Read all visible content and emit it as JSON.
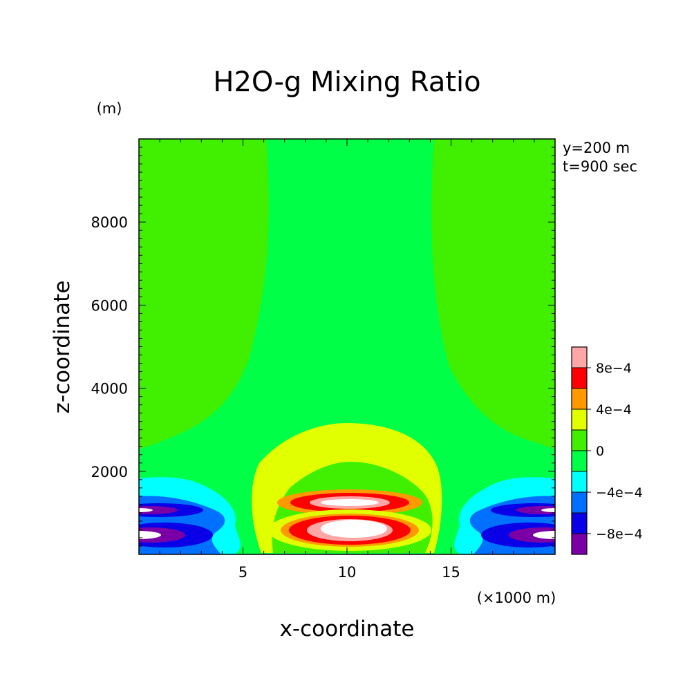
{
  "colors": {
    "frame": "#000000",
    "text": "#000000"
  },
  "chart_data": {
    "type": "heatmap",
    "title": "H2O-g Mixing Ratio",
    "xlabel": "x-coordinate",
    "ylabel": "z-coordinate",
    "x_unit": "(×1000 m)",
    "y_unit": "(m)",
    "annotations": [
      "y=200 m",
      "t=900 sec"
    ],
    "xlim": [
      0,
      20
    ],
    "ylim": [
      0,
      10000
    ],
    "x_ticks": [
      5,
      10,
      15
    ],
    "y_ticks": [
      2000,
      4000,
      6000,
      8000
    ],
    "x_tick_labels": [
      "5",
      "10",
      "15"
    ],
    "y_tick_labels": [
      "2000",
      "4000",
      "6000",
      "8000"
    ],
    "grid": false,
    "legend": {
      "position": "right-bottom",
      "levels": [
        -0.001,
        -0.0008,
        -0.0006,
        -0.0004,
        -0.0002,
        0,
        0.0002,
        0.0004,
        0.0006,
        0.0008,
        0.001
      ],
      "colors": [
        "#7a00a6",
        "#0a00e8",
        "#0070ff",
        "#00ffff",
        "#00ff47",
        "#40f000",
        "#e2ff00",
        "#ff9900",
        "#ff0000",
        "#ffa6a6"
      ],
      "tick_values": [
        -0.0008,
        -0.0004,
        0,
        0.0004,
        0.0008
      ],
      "tick_labels": [
        "−8e−4",
        "−4e−4",
        "0",
        "4e−4",
        "8e−4"
      ]
    },
    "fields": {
      "background": {
        "value": 0,
        "color": "#00ff47"
      },
      "upper_side_band": {
        "value": 0.0001,
        "color": "#40f000"
      },
      "central_cell_bottom": {
        "value": 0.001,
        "color": "#ffffff",
        "center_x": 10.3,
        "center_z": 600
      },
      "central_cell_middle": {
        "value": 0.001,
        "color": "#ffffff",
        "center_x": 10.3,
        "center_z": 1300
      },
      "central_cell_top": {
        "value": 0.0003,
        "color": "#e2ff00",
        "center_x": 10.3,
        "center_z": 2450
      },
      "edge_cells_low": {
        "value": -0.001,
        "color": "#ffffff",
        "center_z": 450
      },
      "edge_cells_high": {
        "value": -0.001,
        "color": "#ffffff",
        "center_z": 1150
      }
    }
  }
}
